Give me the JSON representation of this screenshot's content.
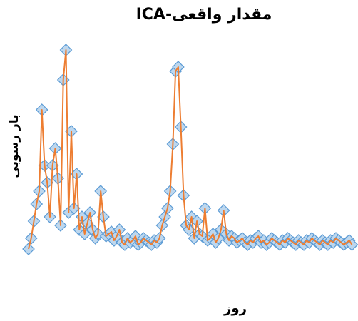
{
  "chart_data": {
    "type": "line",
    "title": "مقدار واقعی-ICA",
    "xlabel": "روز",
    "ylabel": "بار رسوبی",
    "xlim": [
      0,
      365
    ],
    "ylim": [
      0,
      100
    ],
    "grid": false,
    "legend": "none",
    "colors": {
      "line": "#ED7D31",
      "marker_fill": "#BDD7EE",
      "marker_edge": "#5B9BD5"
    },
    "series": [
      {
        "marker": "diamond",
        "x": [
          0,
          3,
          6,
          9,
          12,
          15,
          18,
          21,
          24,
          27,
          30,
          33,
          36,
          39,
          42,
          45,
          48,
          51,
          54,
          57,
          60,
          63,
          66,
          69,
          72,
          75,
          78,
          81,
          84,
          87,
          90,
          93,
          96,
          99,
          102,
          105,
          108,
          111,
          114,
          117,
          120,
          123,
          126,
          129,
          132,
          135,
          138,
          141,
          144,
          147,
          150,
          153,
          156,
          159,
          162,
          165,
          168,
          171,
          174,
          177,
          180,
          183,
          186,
          189,
          192,
          195,
          198,
          201,
          204,
          207,
          210,
          213,
          216,
          219,
          222,
          225,
          228,
          231,
          234,
          237,
          240,
          243,
          246,
          249,
          252,
          255,
          258,
          261,
          264,
          267,
          270,
          273,
          276,
          279,
          282,
          285,
          288,
          291,
          294,
          297,
          300,
          303,
          306,
          309,
          312,
          315,
          318,
          321,
          324,
          327,
          330,
          333,
          336,
          339,
          342,
          345,
          348,
          351,
          354,
          357,
          360,
          363
        ],
        "values": [
          3,
          8,
          16,
          24,
          30,
          68,
          42,
          34,
          18,
          42,
          50,
          36,
          14,
          82,
          96,
          20,
          58,
          22,
          38,
          12,
          18,
          10,
          15,
          20,
          12,
          8,
          10,
          30,
          18,
          9,
          10,
          11,
          7,
          9,
          12,
          6,
          5,
          8,
          6,
          7,
          9,
          5,
          6,
          8,
          7,
          6,
          5,
          7,
          6,
          8,
          14,
          18,
          22,
          30,
          52,
          86,
          88,
          60,
          28,
          14,
          12,
          18,
          8,
          16,
          10,
          9,
          22,
          7,
          8,
          10,
          6,
          8,
          12,
          21,
          10,
          7,
          9,
          8,
          6,
          7,
          8,
          6,
          5,
          7,
          6,
          8,
          9,
          6,
          7,
          5,
          6,
          8,
          7,
          6,
          5,
          7,
          6,
          8,
          7,
          6,
          5,
          7,
          6,
          5,
          7,
          6,
          8,
          7,
          6,
          5,
          7,
          6,
          5,
          7,
          6,
          8,
          7,
          6,
          5,
          6,
          7,
          5
        ]
      }
    ]
  }
}
